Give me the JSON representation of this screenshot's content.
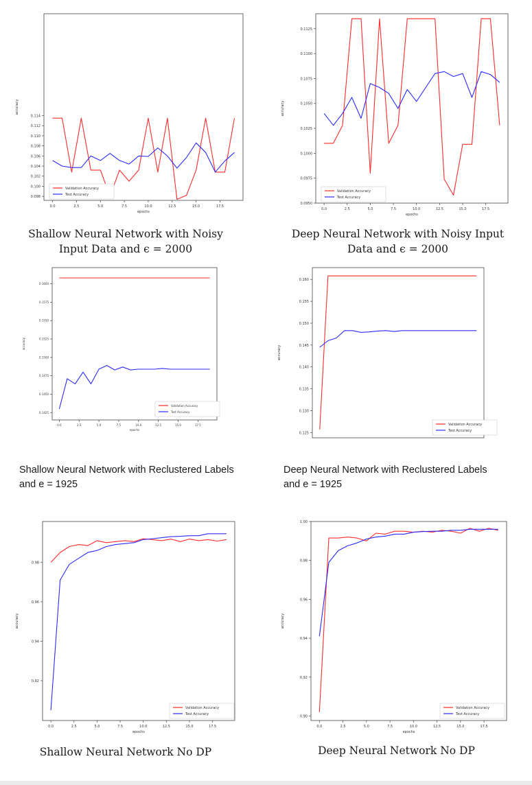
{
  "captions": [
    "Shallow Neural Network with Noisy Input Data and ϵ = 2000",
    "Deep Neural Network with Noisy Input Data and ϵ = 2000",
    "Shallow Neural Network with Reclustered Labels and e = 1925",
    "Deep  Neural Network with Reclustered Labels and e = 1925",
    "Shallow Neural Network No DP",
    "Deep Neural Network No DP"
  ],
  "colors": {
    "validation": "#ff2a2a",
    "test": "#2a2aff",
    "axis": "#333333"
  },
  "chart_data": [
    {
      "type": "line",
      "xlabel": "epochs",
      "ylabel": "accuracy",
      "xlim": [
        -0.9,
        19.9
      ],
      "ylim": [
        0.0972,
        0.1342
      ],
      "xticks": [
        0.0,
        2.5,
        5.0,
        7.5,
        10.0,
        12.5,
        15.0,
        17.5
      ],
      "xtick_labels": [
        "0.0",
        "2.5",
        "5.0",
        "7.5",
        "10.0",
        "12.5",
        "15.0",
        "17.5"
      ],
      "yticks": [
        0.098,
        0.1,
        0.102,
        0.104,
        0.106,
        0.108,
        0.11,
        0.112,
        0.114
      ],
      "ytick_labels": [
        "0.098",
        "0.100",
        "0.102",
        "0.104",
        "0.106",
        "0.108",
        "0.110",
        "0.112",
        "0.114"
      ],
      "legend": "bottom-left",
      "x": [
        0,
        1,
        2,
        3,
        4,
        5,
        6,
        7,
        8,
        9,
        10,
        11,
        12,
        13,
        14,
        15,
        16,
        17,
        18,
        19
      ],
      "series": [
        {
          "name": "Validation Accuracy",
          "color": "red",
          "values": [
            0.1135,
            0.1135,
            0.1028,
            0.1135,
            0.1032,
            0.1032,
            0.098,
            0.1032,
            0.101,
            0.1032,
            0.1135,
            0.1028,
            0.1135,
            0.0974,
            0.0982,
            0.1032,
            0.1135,
            0.1028,
            0.1028,
            0.1135
          ]
        },
        {
          "name": "Test Accuracy",
          "color": "blue",
          "values": [
            0.1051,
            0.104,
            0.1037,
            0.1037,
            0.106,
            0.1051,
            0.1065,
            0.1051,
            0.1044,
            0.106,
            0.1059,
            0.1076,
            0.106,
            0.1036,
            0.1057,
            0.1086,
            0.1067,
            0.1028,
            0.105,
            0.1067
          ]
        }
      ]
    },
    {
      "type": "line",
      "xlabel": "epochs",
      "ylabel": "accuracy",
      "xlim": [
        -0.9,
        19.9
      ],
      "ylim": [
        0.095,
        0.114
      ],
      "xticks": [
        0.0,
        2.5,
        5.0,
        7.5,
        10.0,
        12.5,
        15.0,
        17.5
      ],
      "xtick_labels": [
        "0.0",
        "2.5",
        "5.0",
        "7.5",
        "10.0",
        "12.5",
        "15.0",
        "17.5"
      ],
      "yticks": [
        0.095,
        0.0975,
        0.1,
        0.1025,
        0.105,
        0.1075,
        0.11,
        0.1125
      ],
      "ytick_labels": [
        "0.0950",
        "0.0975",
        "0.1000",
        "0.1025",
        "0.1050",
        "0.1075",
        "0.1100",
        "0.1125"
      ],
      "legend": "bottom-left",
      "x": [
        0,
        1,
        2,
        3,
        4,
        5,
        6,
        7,
        8,
        9,
        10,
        11,
        12,
        13,
        14,
        15,
        16,
        17,
        18,
        19
      ],
      "series": [
        {
          "name": "Validation Accuracy",
          "color": "red",
          "values": [
            0.101,
            0.101,
            0.1028,
            0.1135,
            0.1135,
            0.098,
            0.1135,
            0.101,
            0.1028,
            0.1135,
            0.1135,
            0.1135,
            0.1135,
            0.0974,
            0.0958,
            0.1009,
            0.1009,
            0.1135,
            0.1135,
            0.1028
          ]
        },
        {
          "name": "Test Accuracy",
          "color": "blue",
          "values": [
            0.104,
            0.1028,
            0.104,
            0.1056,
            0.1035,
            0.107,
            0.1066,
            0.106,
            0.1045,
            0.1064,
            0.1052,
            0.1066,
            0.108,
            0.1082,
            0.1077,
            0.108,
            0.1056,
            0.1082,
            0.1079,
            0.1071
          ]
        }
      ]
    },
    {
      "type": "line",
      "xlabel": "epochs",
      "ylabel": "accuracy",
      "xlim": [
        -0.9,
        19.9
      ],
      "ylim": [
        0.1415,
        0.1622
      ],
      "xticks": [
        0.0,
        2.5,
        5.0,
        7.5,
        10.0,
        12.5,
        15.0,
        17.5
      ],
      "xtick_labels": [
        "0.0",
        "2.5",
        "5.0",
        "7.5",
        "10.0",
        "12.5",
        "15.0",
        "17.5"
      ],
      "yticks": [
        0.1425,
        0.145,
        0.1475,
        0.15,
        0.1525,
        0.155,
        0.1575,
        0.16
      ],
      "ytick_labels": [
        "0.1425",
        "0.1450",
        "0.1475",
        "0.1500",
        "0.1525",
        "0.1550",
        "0.1575",
        "0.1600"
      ],
      "legend": "bottom-right",
      "x": [
        0,
        1,
        2,
        3,
        4,
        5,
        6,
        7,
        8,
        9,
        10,
        11,
        12,
        13,
        14,
        15,
        16,
        17,
        18,
        19
      ],
      "series": [
        {
          "name": "Validation Accuracy",
          "color": "red",
          "values": [
            0.1608,
            0.1608,
            0.1608,
            0.1608,
            0.1608,
            0.1608,
            0.1608,
            0.1608,
            0.1608,
            0.1608,
            0.1608,
            0.1608,
            0.1608,
            0.1608,
            0.1608,
            0.1608,
            0.1608,
            0.1608,
            0.1608,
            0.1608
          ]
        },
        {
          "name": "Test Accuracy",
          "color": "blue",
          "values": [
            0.143,
            0.1471,
            0.1464,
            0.148,
            0.1464,
            0.1484,
            0.1489,
            0.1483,
            0.1487,
            0.1483,
            0.1484,
            0.1484,
            0.1484,
            0.1485,
            0.1484,
            0.1484,
            0.1484,
            0.1484,
            0.1484,
            0.1484
          ]
        }
      ]
    },
    {
      "type": "line",
      "xlabel": "",
      "ylabel": "accuracy",
      "xlim": [
        -0.9,
        19.9
      ],
      "ylim": [
        0.1238,
        0.1627
      ],
      "xticks": [],
      "xtick_labels": [],
      "yticks": [
        0.125,
        0.13,
        0.135,
        0.14,
        0.145,
        0.15,
        0.155,
        0.16
      ],
      "ytick_labels": [
        "0.125",
        "0.130",
        "0.135",
        "0.140",
        "0.145",
        "0.150",
        "0.155",
        "0.160"
      ],
      "legend": "bottom-right",
      "x": [
        0,
        1,
        2,
        3,
        4,
        5,
        6,
        7,
        8,
        9,
        10,
        11,
        12,
        13,
        14,
        15,
        16,
        17,
        18,
        19
      ],
      "series": [
        {
          "name": "Validation Accuracy",
          "color": "red",
          "values": [
            0.1257,
            0.1608,
            0.1608,
            0.1608,
            0.1608,
            0.1608,
            0.1608,
            0.1608,
            0.1608,
            0.1608,
            0.1608,
            0.1608,
            0.1608,
            0.1608,
            0.1608,
            0.1608,
            0.1608,
            0.1608,
            0.1608,
            0.1608
          ]
        },
        {
          "name": "Test Accuracy",
          "color": "blue",
          "values": [
            0.1445,
            0.146,
            0.1466,
            0.1483,
            0.1483,
            0.1479,
            0.148,
            0.1482,
            0.1483,
            0.1481,
            0.1483,
            0.1483,
            0.1483,
            0.1483,
            0.1483,
            0.1483,
            0.1483,
            0.1483,
            0.1483,
            0.1483
          ]
        }
      ]
    },
    {
      "type": "line",
      "xlabel": "epochs",
      "ylabel": "accuracy",
      "xlim": [
        -0.9,
        19.9
      ],
      "ylim": [
        0.8998,
        1.0007
      ],
      "xticks": [
        0.0,
        2.5,
        5.0,
        7.5,
        10.0,
        12.5,
        15.0,
        17.5
      ],
      "xtick_labels": [
        "0.0",
        "2.5",
        "5.0",
        "7.5",
        "10.0",
        "12.5",
        "15.0",
        "17.5"
      ],
      "yticks": [
        0.92,
        0.94,
        0.96,
        0.98
      ],
      "ytick_labels": [
        "0.92",
        "0.94",
        "0.96",
        "0.98"
      ],
      "legend": "bottom-right",
      "x": [
        0,
        1,
        2,
        3,
        4,
        5,
        6,
        7,
        8,
        9,
        10,
        11,
        12,
        13,
        14,
        15,
        16,
        17,
        18,
        19
      ],
      "series": [
        {
          "name": "Validation Accuracy",
          "color": "red",
          "values": [
            0.98,
            0.985,
            0.988,
            0.989,
            0.9885,
            0.991,
            0.99,
            0.9905,
            0.991,
            0.9905,
            0.992,
            0.9915,
            0.991,
            0.9918,
            0.9905,
            0.9918,
            0.991,
            0.9915,
            0.9908,
            0.9915
          ]
        },
        {
          "name": "Test Accuracy",
          "color": "blue",
          "values": [
            0.905,
            0.971,
            0.979,
            0.982,
            0.985,
            0.986,
            0.988,
            0.989,
            0.9895,
            0.99,
            0.9915,
            0.992,
            0.9925,
            0.993,
            0.9932,
            0.9935,
            0.9935,
            0.9945,
            0.9945,
            0.9945
          ]
        }
      ]
    },
    {
      "type": "line",
      "xlabel": "epochs",
      "ylabel": "accuracy",
      "xlim": [
        -0.9,
        19.9
      ],
      "ylim": [
        0.8977,
        1.0
      ],
      "xticks": [
        0.0,
        2.5,
        5.0,
        7.5,
        10.0,
        12.5,
        15.0,
        17.5
      ],
      "xtick_labels": [
        "0.0",
        "2.5",
        "5.0",
        "7.5",
        "10.0",
        "12.5",
        "15.0",
        "17.5"
      ],
      "yticks": [
        0.9,
        0.92,
        0.94,
        0.96,
        0.98,
        1.0
      ],
      "ytick_labels": [
        "0.90",
        "0.92",
        "0.94",
        "0.96",
        "0.98",
        "1.00"
      ],
      "legend": "bottom-right",
      "x": [
        0,
        1,
        2,
        3,
        4,
        5,
        6,
        7,
        8,
        9,
        10,
        11,
        12,
        13,
        14,
        15,
        16,
        17,
        18,
        19
      ],
      "series": [
        {
          "name": "Validation Accuracy",
          "color": "red",
          "values": [
            0.902,
            0.9915,
            0.9915,
            0.992,
            0.9915,
            0.99,
            0.994,
            0.9935,
            0.995,
            0.995,
            0.9945,
            0.995,
            0.9945,
            0.9955,
            0.995,
            0.994,
            0.9965,
            0.995,
            0.9965,
            0.9955
          ]
        },
        {
          "name": "Test Accuracy",
          "color": "blue",
          "values": [
            0.941,
            0.979,
            0.985,
            0.9875,
            0.989,
            0.991,
            0.992,
            0.9925,
            0.9935,
            0.9935,
            0.9945,
            0.9948,
            0.995,
            0.995,
            0.9955,
            0.9955,
            0.996,
            0.996,
            0.996,
            0.996
          ]
        }
      ]
    }
  ]
}
